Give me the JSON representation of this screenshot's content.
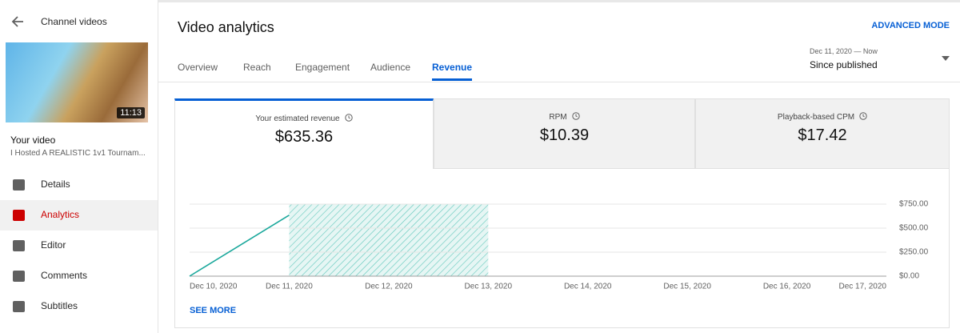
{
  "sidebar": {
    "back_label": "Channel videos",
    "duration": "11:13",
    "section_label": "Your video",
    "video_title": "I Hosted A REALISTIC 1v1 Tournam...",
    "nav": [
      "Details",
      "Analytics",
      "Editor",
      "Comments",
      "Subtitles"
    ],
    "active_nav": "Analytics"
  },
  "header": {
    "title": "Video analytics",
    "advanced_mode": "ADVANCED MODE",
    "tabs": [
      "Overview",
      "Reach",
      "Engagement",
      "Audience",
      "Revenue"
    ],
    "active_tab": "Revenue",
    "date_range": {
      "period": "Dec 11, 2020 — Now",
      "label": "Since published"
    }
  },
  "metrics": [
    {
      "label": "Your estimated revenue",
      "value": "$635.36"
    },
    {
      "label": "RPM",
      "value": "$10.39"
    },
    {
      "label": "Playback-based CPM",
      "value": "$17.42"
    }
  ],
  "chart_data": {
    "type": "line",
    "categories": [
      "Dec 10, 2020",
      "Dec 11, 2020",
      "Dec 12, 2020",
      "Dec 13, 2020",
      "Dec 14, 2020",
      "Dec 15, 2020",
      "Dec 16, 2020",
      "Dec 17, 2020"
    ],
    "values": [
      0,
      635,
      null,
      null,
      null,
      null,
      null,
      null
    ],
    "color": "#1ba89c",
    "highlight": [
      "Dec 11, 2020",
      "Dec 13, 2020"
    ],
    "ylim": [
      0,
      750
    ],
    "yticks": [
      {
        "value": 0,
        "label": "$0.00"
      },
      {
        "value": 250,
        "label": "$250.00"
      },
      {
        "value": 500,
        "label": "$500.00"
      },
      {
        "value": 750,
        "label": "$750.00"
      }
    ],
    "grid": true
  },
  "see_more": "SEE MORE"
}
